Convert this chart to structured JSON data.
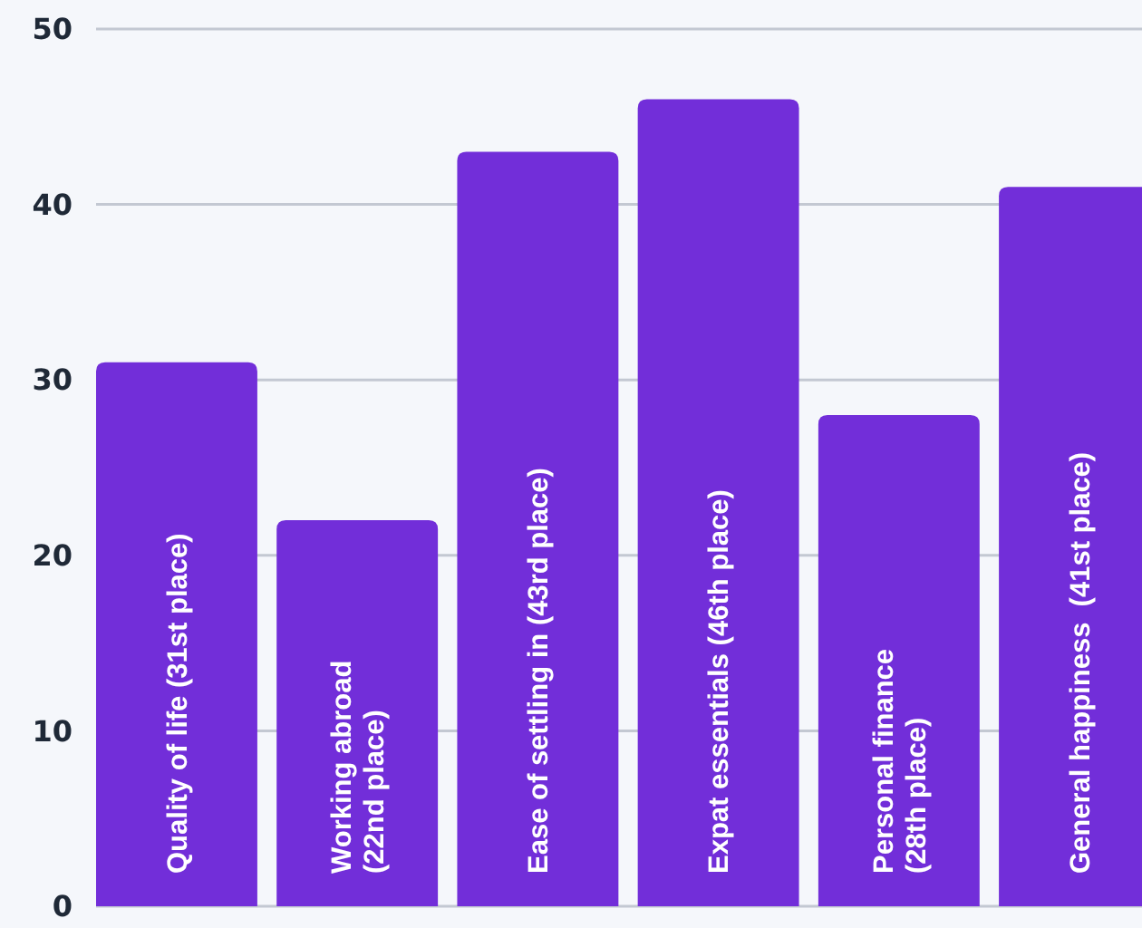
{
  "chart_data": {
    "type": "bar",
    "categories": [
      "Quality of life (31st place)",
      "Working abroad\n(22nd place)",
      "Ease of settling in (43rd place)",
      "Expat essentials (46th place)",
      "Personal finance\n(28th place)",
      "General happiness  (41st place)"
    ],
    "values": [
      31,
      22,
      43,
      46,
      28,
      41
    ],
    "color": "#722ed9",
    "ylim": [
      0,
      50
    ],
    "yticks": [
      0,
      10,
      20,
      30,
      40,
      50
    ],
    "grid": "y"
  }
}
